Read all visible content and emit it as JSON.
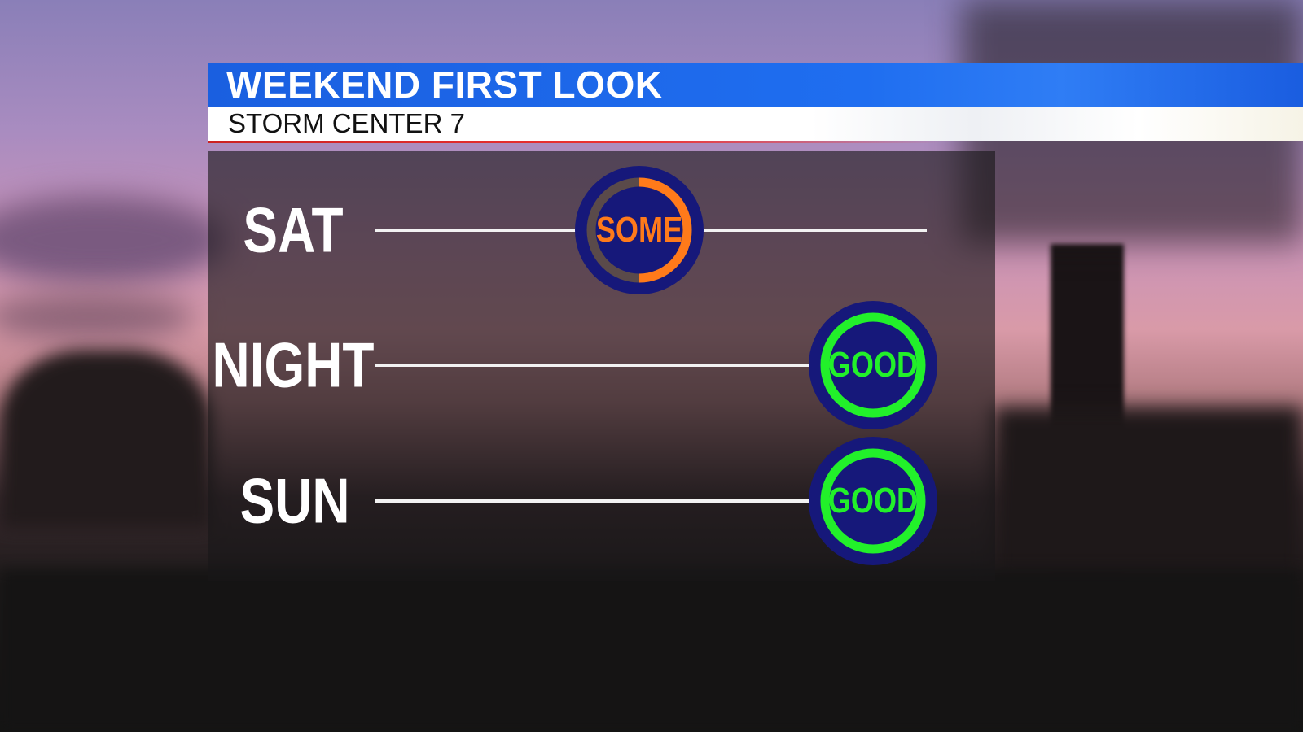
{
  "header": {
    "title": "WEEKEND FIRST LOOK",
    "subtitle": "STORM CENTER 7"
  },
  "colors": {
    "header_blue": "#1f6ef0",
    "badge_navy": "#16187a",
    "some_orange": "#ff7a1a",
    "good_green": "#22f02a"
  },
  "rows": [
    {
      "day": "SAT",
      "rating": "SOME",
      "color": "#ff7a1a",
      "fill_fraction": 0.5
    },
    {
      "day": "NIGHT",
      "rating": "GOOD",
      "color": "#22f02a",
      "fill_fraction": 1.0
    },
    {
      "day": "SUN",
      "rating": "GOOD",
      "color": "#22f02a",
      "fill_fraction": 1.0
    }
  ]
}
